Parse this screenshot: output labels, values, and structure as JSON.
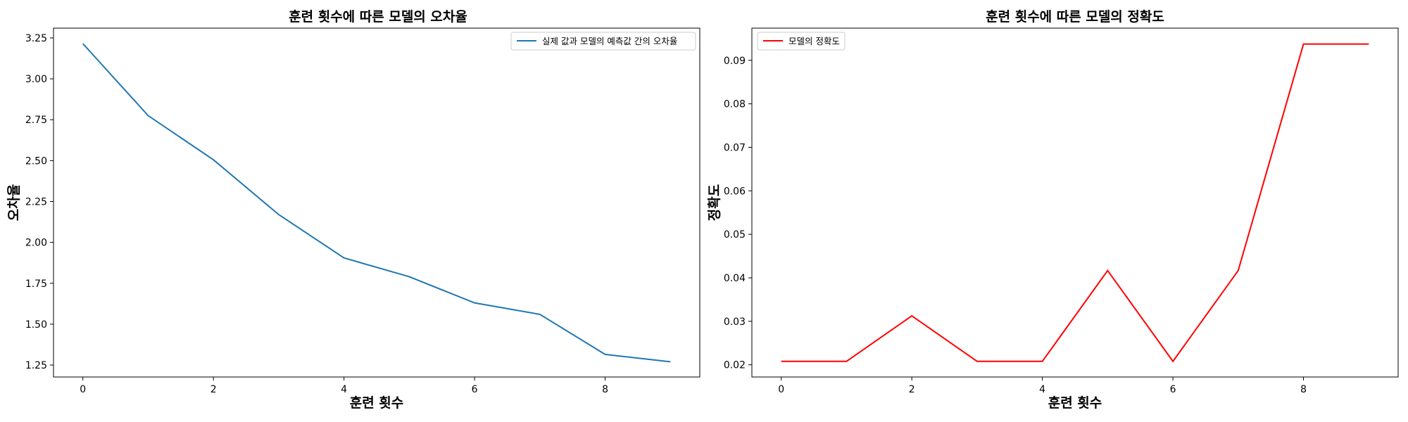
{
  "chart_data": [
    {
      "type": "line",
      "title": "훈련 횟수에 따른 모델의 오차율",
      "xlabel": "훈련 횟수",
      "ylabel": "오차율",
      "x": [
        0,
        1,
        2,
        3,
        4,
        5,
        6,
        7,
        8,
        9
      ],
      "xticks": [
        0,
        2,
        4,
        6,
        8
      ],
      "xlim": [
        -0.45,
        9.45
      ],
      "yticks": [
        1.25,
        1.5,
        1.75,
        2.0,
        2.25,
        2.5,
        2.75,
        3.0,
        3.25
      ],
      "ytick_labels": [
        "1.25",
        "1.50",
        "1.75",
        "2.00",
        "2.25",
        "2.50",
        "2.75",
        "3.00",
        "3.25"
      ],
      "ylim": [
        1.177,
        3.31
      ],
      "grid": false,
      "legend_position": "top-right",
      "series": [
        {
          "name": "실제 값과 모델의 예측값 간의 오차율",
          "color": "#1f77b4",
          "values": [
            3.215,
            2.775,
            2.505,
            2.17,
            1.905,
            1.79,
            1.63,
            1.56,
            1.315,
            1.27
          ]
        }
      ]
    },
    {
      "type": "line",
      "title": "훈련 횟수에 따른 모델의 정확도",
      "xlabel": "훈련 횟수",
      "ylabel": "정확도",
      "x": [
        0,
        1,
        2,
        3,
        4,
        5,
        6,
        7,
        8,
        9
      ],
      "xticks": [
        0,
        2,
        4,
        6,
        8
      ],
      "xlim": [
        -0.45,
        9.45
      ],
      "yticks": [
        0.02,
        0.03,
        0.04,
        0.05,
        0.06,
        0.07,
        0.08,
        0.09
      ],
      "ytick_labels": [
        "0.02",
        "0.03",
        "0.04",
        "0.05",
        "0.06",
        "0.07",
        "0.08",
        "0.09"
      ],
      "ylim": [
        0.0172,
        0.0974
      ],
      "grid": false,
      "legend_position": "top-left",
      "series": [
        {
          "name": "모델의 정확도",
          "color": "#ff0000",
          "values": [
            0.0208,
            0.0208,
            0.03125,
            0.0208,
            0.0208,
            0.04167,
            0.0208,
            0.04167,
            0.09375,
            0.09375
          ]
        }
      ]
    }
  ]
}
